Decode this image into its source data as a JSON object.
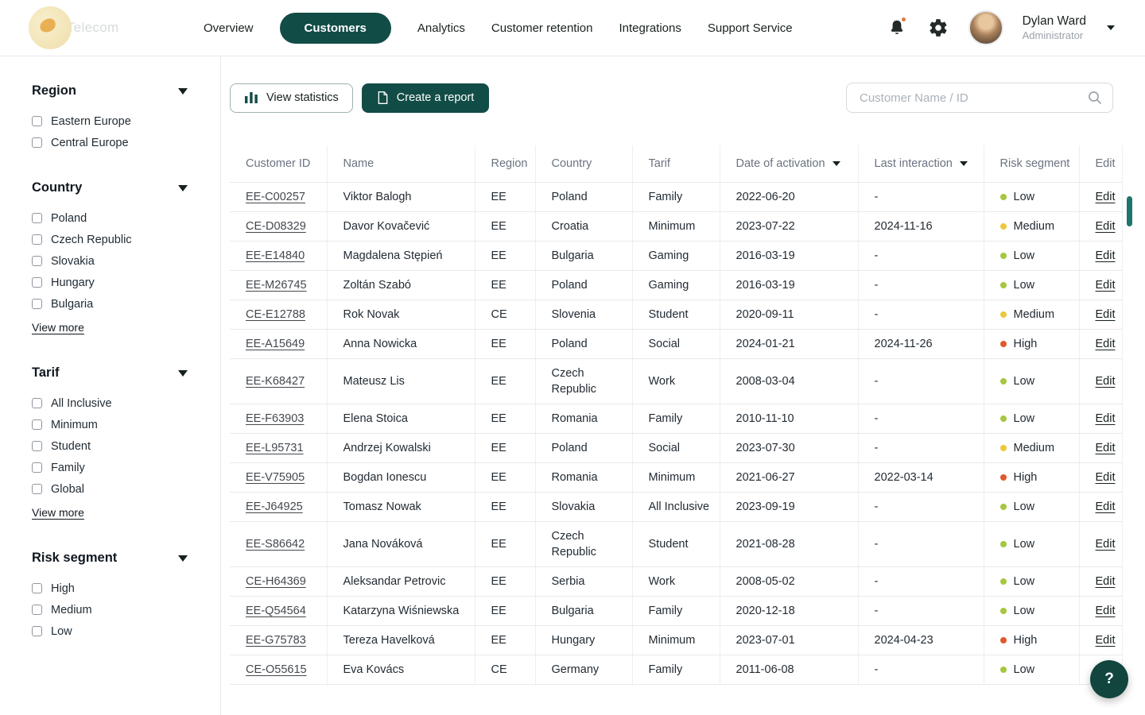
{
  "header": {
    "brand": "Telecom",
    "nav": [
      {
        "label": "Overview",
        "active": false
      },
      {
        "label": "Customers",
        "active": true
      },
      {
        "label": "Analytics",
        "active": false
      },
      {
        "label": "Customer retention",
        "active": false
      },
      {
        "label": "Integrations",
        "active": false
      },
      {
        "label": "Support Service",
        "active": false
      }
    ],
    "user": {
      "name": "Dylan Ward",
      "role": "Administrator"
    }
  },
  "sidebar": {
    "view_more_label": "View more",
    "groups": [
      {
        "title": "Region",
        "items": [
          "Eastern Europe",
          "Central Europe"
        ],
        "view_more": false
      },
      {
        "title": "Country",
        "items": [
          "Poland",
          "Czech Republic",
          "Slovakia",
          "Hungary",
          "Bulgaria"
        ],
        "view_more": true
      },
      {
        "title": "Tarif",
        "items": [
          "All Inclusive",
          "Minimum",
          "Student",
          "Family",
          "Global"
        ],
        "view_more": true
      },
      {
        "title": "Risk segment",
        "items": [
          "High",
          "Medium",
          "Low"
        ],
        "view_more": false
      }
    ]
  },
  "toolbar": {
    "view_statistics": "View statistics",
    "create_report": "Create a report",
    "search_placeholder": "Customer Name / ID"
  },
  "table": {
    "columns": [
      "Customer ID",
      "Name",
      "Region",
      "Country",
      "Tarif",
      "Date of activation",
      "Last interaction",
      "Risk segment",
      "Edit"
    ],
    "sort_columns": [
      "Date of activation",
      "Last interaction"
    ],
    "edit_label": "Edit",
    "rows": [
      {
        "id": "EE-C00257",
        "name": "Viktor Balogh",
        "region": "EE",
        "country": "Poland",
        "tarif": "Family",
        "activation": "2022-06-20",
        "last_interaction": "-",
        "risk": "Low"
      },
      {
        "id": "CE-D08329",
        "name": "Davor Kovačević",
        "region": "EE",
        "country": "Croatia",
        "tarif": "Minimum",
        "activation": "2023-07-22",
        "last_interaction": "2024-11-16",
        "risk": "Medium"
      },
      {
        "id": "EE-E14840",
        "name": "Magdalena Stępień",
        "region": "EE",
        "country": "Bulgaria",
        "tarif": "Gaming",
        "activation": "2016-03-19",
        "last_interaction": "-",
        "risk": "Low"
      },
      {
        "id": "EE-M26745",
        "name": "Zoltán Szabó",
        "region": "EE",
        "country": "Poland",
        "tarif": "Gaming",
        "activation": "2016-03-19",
        "last_interaction": "-",
        "risk": "Low"
      },
      {
        "id": "CE-E12788",
        "name": "Rok Novak",
        "region": "CE",
        "country": "Slovenia",
        "tarif": "Student",
        "activation": "2020-09-11",
        "last_interaction": "-",
        "risk": "Medium"
      },
      {
        "id": "EE-A15649",
        "name": "Anna Nowicka",
        "region": "EE",
        "country": "Poland",
        "tarif": "Social",
        "activation": "2024-01-21",
        "last_interaction": "2024-11-26",
        "risk": "High"
      },
      {
        "id": "EE-K68427",
        "name": "Mateusz Lis",
        "region": "EE",
        "country": "Czech Republic",
        "tarif": "Work",
        "activation": "2008-03-04",
        "last_interaction": "-",
        "risk": "Low"
      },
      {
        "id": "EE-F63903",
        "name": "Elena Stoica",
        "region": "EE",
        "country": "Romania",
        "tarif": "Family",
        "activation": "2010-11-10",
        "last_interaction": "-",
        "risk": "Low"
      },
      {
        "id": "EE-L95731",
        "name": "Andrzej Kowalski",
        "region": "EE",
        "country": "Poland",
        "tarif": "Social",
        "activation": "2023-07-30",
        "last_interaction": "-",
        "risk": "Medium"
      },
      {
        "id": "EE-V75905",
        "name": "Bogdan Ionescu",
        "region": "EE",
        "country": "Romania",
        "tarif": "Minimum",
        "activation": "2021-06-27",
        "last_interaction": "2022-03-14",
        "risk": "High"
      },
      {
        "id": "EE-J64925",
        "name": "Tomasz Nowak",
        "region": "EE",
        "country": "Slovakia",
        "tarif": "All Inclusive",
        "activation": "2023-09-19",
        "last_interaction": "-",
        "risk": "Low"
      },
      {
        "id": "EE-S86642",
        "name": "Jana Nováková",
        "region": "EE",
        "country": "Czech Republic",
        "tarif": "Student",
        "activation": "2021-08-28",
        "last_interaction": "-",
        "risk": "Low"
      },
      {
        "id": "CE-H64369",
        "name": "Aleksandar Petrovic",
        "region": "EE",
        "country": "Serbia",
        "tarif": "Work",
        "activation": "2008-05-02",
        "last_interaction": "-",
        "risk": "Low"
      },
      {
        "id": "EE-Q54564",
        "name": "Katarzyna Wiśniewska",
        "region": "EE",
        "country": "Bulgaria",
        "tarif": "Family",
        "activation": "2020-12-18",
        "last_interaction": "-",
        "risk": "Low"
      },
      {
        "id": "EE-G75783",
        "name": "Tereza Havelková",
        "region": "EE",
        "country": "Hungary",
        "tarif": "Minimum",
        "activation": "2023-07-01",
        "last_interaction": "2024-04-23",
        "risk": "High"
      },
      {
        "id": "CE-O55615",
        "name": "Eva Kovács",
        "region": "CE",
        "country": "Germany",
        "tarif": "Family",
        "activation": "2011-06-08",
        "last_interaction": "-",
        "risk": "Low"
      }
    ]
  },
  "risk_colors": {
    "Low": "#a6c73e",
    "Medium": "#ecc83b",
    "High": "#e2582e"
  },
  "colors": {
    "accent": "#124c46",
    "notification": "#e07a3f"
  },
  "help_button": "?"
}
